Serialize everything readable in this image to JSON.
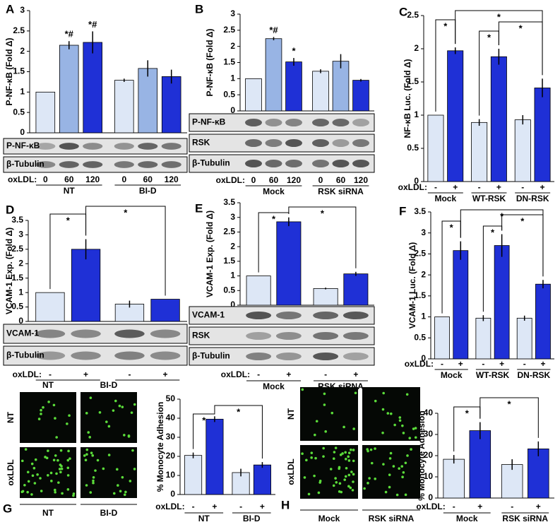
{
  "chart_data": [
    {
      "type": "bar",
      "label": "A",
      "ylabel": "P-NF-κB (Fold Δ)",
      "ylim": [
        0,
        3
      ],
      "yticks": [
        0,
        0.5,
        1,
        1.5,
        2,
        2.5,
        3
      ],
      "x_label": "oxLDL:",
      "categories": [
        "0",
        "60",
        "120",
        "0",
        "60",
        "120"
      ],
      "groups": [
        "NT",
        "BI-D"
      ],
      "values": [
        1,
        2.15,
        2.22,
        1.29,
        1.58,
        1.38
      ],
      "errors": [
        null,
        0.1,
        0.27,
        0.04,
        0.2,
        0.17
      ],
      "colors": [
        "#dde7f6",
        "#98b4e4",
        "#1f30d6",
        "#dde7f6",
        "#98b4e4",
        "#1f30d6"
      ],
      "bar_annotations": [
        null,
        "*#",
        "*#",
        null,
        null,
        null
      ],
      "significance": [],
      "blots": [
        "P-NF-κB",
        "β-Tubulin"
      ]
    },
    {
      "type": "bar",
      "label": "B",
      "ylabel": "P-NF-κB (Fold Δ)",
      "ylim": [
        0,
        3
      ],
      "yticks": [
        0,
        0.5,
        1,
        1.5,
        2,
        2.5,
        3
      ],
      "x_label": "oxLDL:",
      "categories": [
        "0",
        "60",
        "120",
        "0",
        "60",
        "120"
      ],
      "groups": [
        "Mock",
        "RSK siRNA"
      ],
      "values": [
        1,
        2.24,
        1.52,
        1.23,
        1.54,
        0.95
      ],
      "errors": [
        null,
        0.05,
        0.12,
        0.06,
        0.22,
        0.04
      ],
      "colors": [
        "#dde7f6",
        "#98b4e4",
        "#1f30d6",
        "#dde7f6",
        "#98b4e4",
        "#1f30d6"
      ],
      "bar_annotations": [
        null,
        "*#",
        "*",
        null,
        null,
        null
      ],
      "significance": [],
      "blots": [
        "P-NF-κB",
        "RSK",
        "β-Tubulin"
      ]
    },
    {
      "type": "bar",
      "label": "C",
      "ylabel": "NF-κB Luc. (Fold Δ)",
      "ylim": [
        0,
        2.5
      ],
      "yticks": [
        0,
        0.5,
        1,
        1.5,
        2,
        2.5
      ],
      "x_label": "oxLDL:",
      "categories": [
        "-",
        "+",
        "-",
        "+",
        "-",
        "+"
      ],
      "groups": [
        "Mock",
        "WT-RSK",
        "DN-RSK"
      ],
      "values": [
        1,
        1.97,
        0.89,
        1.88,
        0.93,
        1.41
      ],
      "errors": [
        null,
        0.05,
        0.05,
        0.12,
        0.07,
        0.14
      ],
      "colors": [
        "#dde7f6",
        "#1f30d6",
        "#dde7f6",
        "#1f30d6",
        "#dde7f6",
        "#1f30d6"
      ],
      "bar_annotations": [
        null,
        null,
        null,
        null,
        null,
        null
      ],
      "significance": [
        "*",
        "*",
        "*",
        "*"
      ],
      "blots": []
    },
    {
      "type": "bar",
      "label": "D",
      "ylabel": "VCAM-1 Exp. (Fold Δ)",
      "ylim": [
        0,
        3.5
      ],
      "yticks": [
        0,
        0.5,
        1,
        1.5,
        2,
        2.5,
        3,
        3.5
      ],
      "x_label": "oxLDL:",
      "categories": [
        "-",
        "+",
        "-",
        "+"
      ],
      "groups": [
        null,
        null
      ],
      "values": [
        1,
        2.5,
        0.6,
        0.77
      ],
      "errors": [
        null,
        0.35,
        0.12,
        null
      ],
      "colors": [
        "#dde7f6",
        "#1f30d6",
        "#dde7f6",
        "#1f30d6"
      ],
      "bar_annotations": [
        null,
        null,
        null,
        null
      ],
      "significance": [
        "*",
        "*"
      ],
      "blots": [
        "VCAM-1",
        "β-Tubulin"
      ]
    },
    {
      "type": "bar",
      "label": "E",
      "ylabel": "VCAM-1 Exp. (Fold Δ)",
      "ylim": [
        0,
        3.5
      ],
      "yticks": [
        0,
        0.5,
        1,
        1.5,
        2,
        2.5,
        3,
        3.5
      ],
      "x_label": "oxLDL:",
      "categories": [
        "-",
        "+",
        "-",
        "+"
      ],
      "groups": [
        "Mock",
        "RSK siRNA"
      ],
      "values": [
        1,
        2.85,
        0.57,
        1.07
      ],
      "errors": [
        null,
        0.15,
        0.03,
        0.07
      ],
      "colors": [
        "#dde7f6",
        "#1f30d6",
        "#dde7f6",
        "#1f30d6"
      ],
      "bar_annotations": [
        null,
        null,
        null,
        null
      ],
      "significance": [
        "*",
        "*"
      ],
      "blots": [
        "VCAM-1",
        "RSK",
        "β-Tubulin"
      ]
    },
    {
      "type": "bar",
      "label": "F",
      "ylabel": "VCAM-1 Luc. (Fold Δ)",
      "ylim": [
        0,
        3.5
      ],
      "yticks": [
        0,
        0.5,
        1,
        1.5,
        2,
        2.5,
        3,
        3.5
      ],
      "x_label": "oxLDL:",
      "categories": [
        "-",
        "+",
        "-",
        "+",
        "-",
        "+"
      ],
      "groups": [
        "Mock",
        "WT-RSK",
        "DN-RSK"
      ],
      "values": [
        1,
        2.58,
        0.97,
        2.7,
        0.97,
        1.78
      ],
      "errors": [
        null,
        0.22,
        0.07,
        0.27,
        0.06,
        0.1
      ],
      "colors": [
        "#dde7f6",
        "#1f30d6",
        "#dde7f6",
        "#1f30d6",
        "#dde7f6",
        "#1f30d6"
      ],
      "bar_annotations": [
        null,
        null,
        null,
        null,
        null,
        null
      ],
      "significance": [
        "*",
        "*",
        "*",
        "*"
      ],
      "blots": []
    },
    {
      "type": "bar",
      "label": "G",
      "ylabel": "% Monocyte Adhesion",
      "ylim": [
        0,
        50
      ],
      "yticks": [
        0,
        10,
        20,
        30,
        40,
        50
      ],
      "x_label": "oxLDL:",
      "categories": [
        "-",
        "+",
        "-",
        "+"
      ],
      "groups": [
        "NT",
        "BI-D"
      ],
      "values": [
        20.5,
        39.5,
        11.5,
        15.5
      ],
      "errors": [
        1.5,
        1.5,
        2,
        1.5
      ],
      "colors": [
        "#dde7f6",
        "#1f30d6",
        "#dde7f6",
        "#1f30d6"
      ],
      "bar_annotations": [
        null,
        null,
        null,
        null
      ],
      "significance": [
        "*",
        "*"
      ],
      "blots": [],
      "image_columns": [
        "NT",
        "BI-D"
      ],
      "image_rows": [
        "NT",
        "oxLDL"
      ],
      "image_groups": [
        "NT",
        "BI-D"
      ]
    },
    {
      "type": "bar",
      "label": "H",
      "ylabel": "% Monocyte Adhesion",
      "ylim": [
        0,
        40
      ],
      "yticks": [
        0,
        10,
        20,
        30,
        40
      ],
      "x_label": "oxLDL:",
      "categories": [
        "-",
        "+",
        "-",
        "+"
      ],
      "groups": [
        "Mock",
        "RSK siRNA"
      ],
      "values": [
        18.3,
        31.8,
        15.8,
        23.2
      ],
      "errors": [
        2,
        4,
        2.5,
        3.5
      ],
      "colors": [
        "#dde7f6",
        "#1f30d6",
        "#dde7f6",
        "#1f30d6"
      ],
      "bar_annotations": [
        null,
        null,
        null,
        null
      ],
      "significance": [
        "*",
        "*"
      ],
      "blots": [],
      "image_rows": [
        "NT",
        "oxLDL"
      ],
      "image_groups": [
        "Mock",
        "RSK siRNA"
      ]
    }
  ]
}
